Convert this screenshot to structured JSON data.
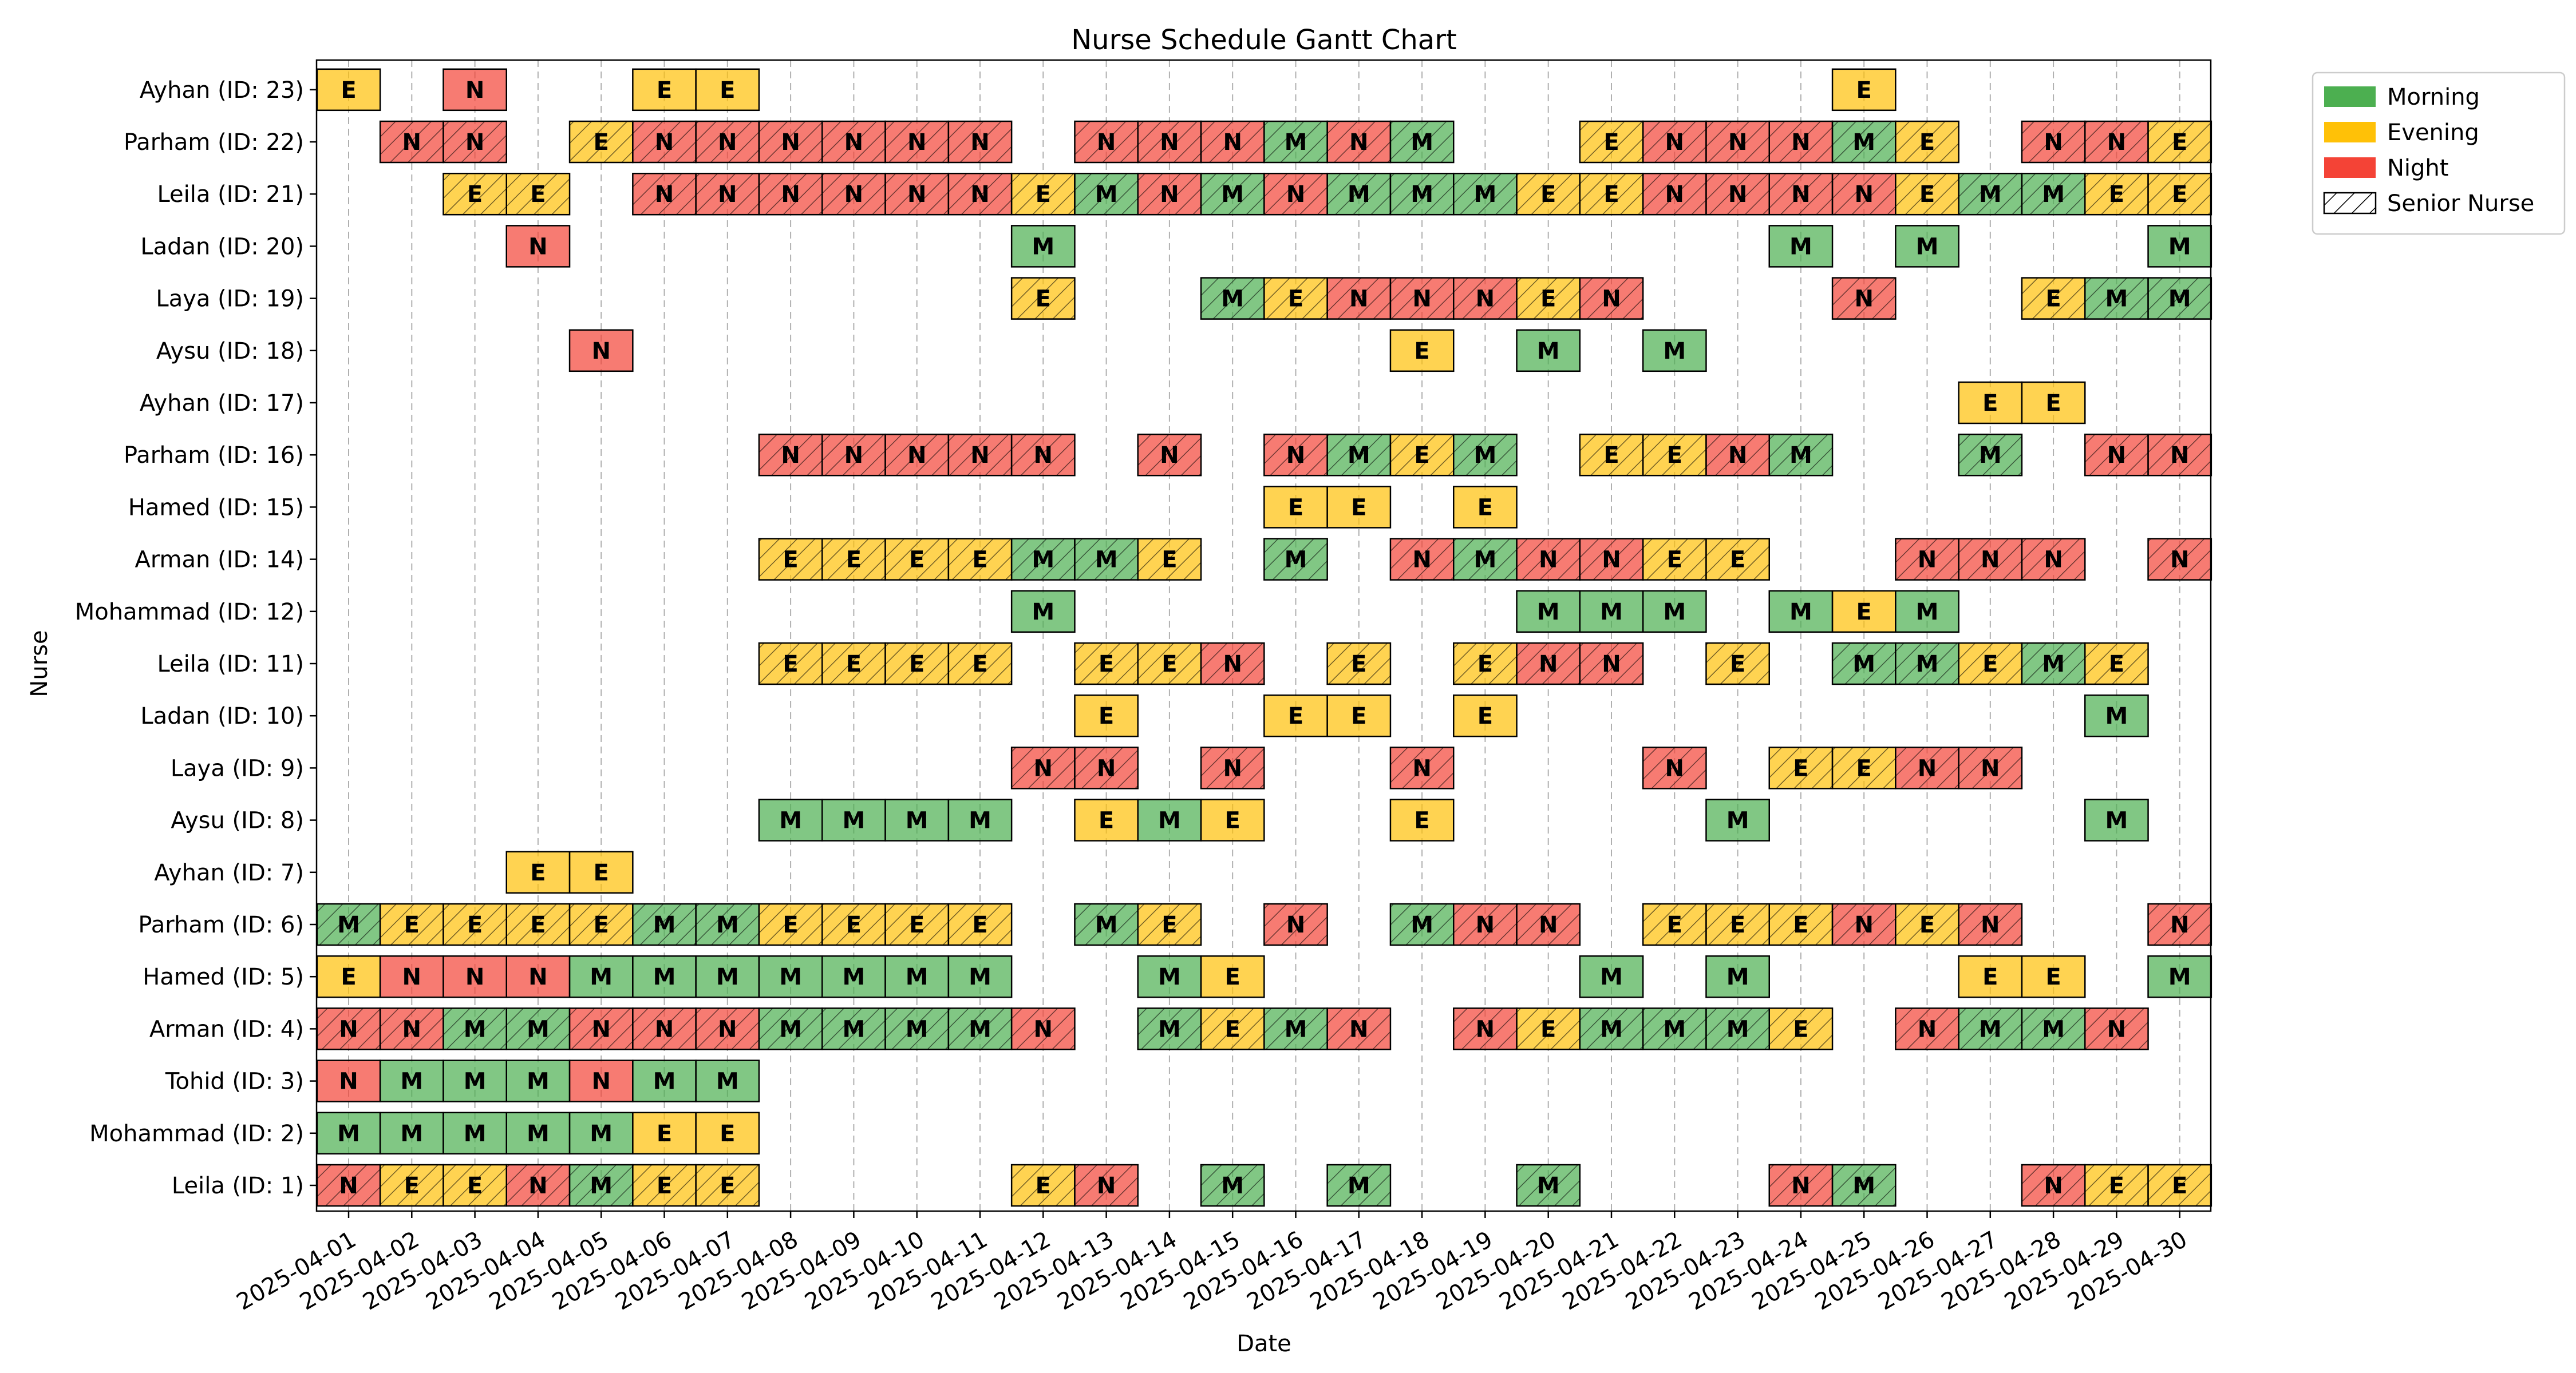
{
  "chart_data": {
    "type": "gantt",
    "title": "Nurse Schedule Gantt Chart",
    "xlabel": "Date",
    "ylabel": "Nurse",
    "grid": "vertical dashed",
    "legend_position": "outside right top",
    "dates": [
      "2025-04-01",
      "2025-04-02",
      "2025-04-03",
      "2025-04-04",
      "2025-04-05",
      "2025-04-06",
      "2025-04-07",
      "2025-04-08",
      "2025-04-09",
      "2025-04-10",
      "2025-04-11",
      "2025-04-12",
      "2025-04-13",
      "2025-04-14",
      "2025-04-15",
      "2025-04-16",
      "2025-04-17",
      "2025-04-18",
      "2025-04-19",
      "2025-04-20",
      "2025-04-21",
      "2025-04-22",
      "2025-04-23",
      "2025-04-24",
      "2025-04-25",
      "2025-04-26",
      "2025-04-27",
      "2025-04-28",
      "2025-04-29",
      "2025-04-30"
    ],
    "shift_types": {
      "M": {
        "name": "Morning",
        "color": "#4caf50"
      },
      "E": {
        "name": "Evening",
        "color": "#ffc107"
      },
      "N": {
        "name": "Night",
        "color": "#f44336"
      }
    },
    "legend": [
      {
        "label": "Morning",
        "color": "#4caf50",
        "hatch": false
      },
      {
        "label": "Evening",
        "color": "#ffc107",
        "hatch": false
      },
      {
        "label": "Night",
        "color": "#f44336",
        "hatch": false
      },
      {
        "label": "Senior Nurse",
        "color": "#ffffff",
        "hatch": true
      }
    ],
    "nurses": [
      {
        "label": "Leila (ID: 1)",
        "senior": true,
        "shifts": {
          "1": "N",
          "2": "E",
          "3": "E",
          "4": "N",
          "5": "M",
          "6": "E",
          "7": "E",
          "12": "E",
          "13": "N",
          "15": "M",
          "17": "M",
          "20": "M",
          "24": "N",
          "25": "M",
          "28": "N",
          "29": "E",
          "30": "E"
        }
      },
      {
        "label": "Mohammad (ID: 2)",
        "senior": false,
        "shifts": {
          "1": "M",
          "2": "M",
          "3": "M",
          "4": "M",
          "5": "M",
          "6": "E",
          "7": "E"
        }
      },
      {
        "label": "Tohid (ID: 3)",
        "senior": false,
        "shifts": {
          "1": "N",
          "2": "M",
          "3": "M",
          "4": "M",
          "5": "N",
          "6": "M",
          "7": "M"
        }
      },
      {
        "label": "Arman (ID: 4)",
        "senior": true,
        "shifts": {
          "1": "N",
          "2": "N",
          "3": "M",
          "4": "M",
          "5": "N",
          "6": "N",
          "7": "N",
          "8": "M",
          "9": "M",
          "10": "M",
          "11": "M",
          "12": "N",
          "14": "M",
          "15": "E",
          "16": "M",
          "17": "N",
          "19": "N",
          "20": "E",
          "21": "M",
          "22": "M",
          "23": "M",
          "24": "E",
          "26": "N",
          "27": "M",
          "28": "M",
          "29": "N"
        }
      },
      {
        "label": "Hamed (ID: 5)",
        "senior": false,
        "shifts": {
          "1": "E",
          "2": "N",
          "3": "N",
          "4": "N",
          "5": "M",
          "6": "M",
          "7": "M",
          "8": "M",
          "9": "M",
          "10": "M",
          "11": "M",
          "14": "M",
          "15": "E",
          "21": "M",
          "23": "M",
          "27": "E",
          "28": "E",
          "30": "M"
        }
      },
      {
        "label": "Parham (ID: 6)",
        "senior": true,
        "shifts": {
          "1": "M",
          "2": "E",
          "3": "E",
          "4": "E",
          "5": "E",
          "6": "M",
          "7": "M",
          "8": "E",
          "9": "E",
          "10": "E",
          "11": "E",
          "13": "M",
          "14": "E",
          "16": "N",
          "18": "M",
          "19": "N",
          "20": "N",
          "22": "E",
          "23": "E",
          "24": "E",
          "25": "N",
          "26": "E",
          "27": "N",
          "30": "N"
        }
      },
      {
        "label": "Ayhan (ID: 7)",
        "senior": false,
        "shifts": {
          "4": "E",
          "5": "E"
        }
      },
      {
        "label": "Aysu (ID: 8)",
        "senior": false,
        "shifts": {
          "8": "M",
          "9": "M",
          "10": "M",
          "11": "M",
          "13": "E",
          "14": "M",
          "15": "E",
          "18": "E",
          "23": "M",
          "29": "M"
        }
      },
      {
        "label": "Laya (ID: 9)",
        "senior": true,
        "shifts": {
          "12": "N",
          "13": "N",
          "15": "N",
          "18": "N",
          "22": "N",
          "24": "E",
          "25": "E",
          "26": "N",
          "27": "N"
        }
      },
      {
        "label": "Ladan (ID: 10)",
        "senior": false,
        "shifts": {
          "13": "E",
          "16": "E",
          "17": "E",
          "19": "E",
          "29": "M"
        }
      },
      {
        "label": "Leila (ID: 11)",
        "senior": true,
        "shifts": {
          "8": "E",
          "9": "E",
          "10": "E",
          "11": "E",
          "13": "E",
          "14": "E",
          "15": "N",
          "17": "E",
          "19": "E",
          "20": "N",
          "21": "N",
          "23": "E",
          "25": "M",
          "26": "M",
          "27": "E",
          "28": "M",
          "29": "E"
        }
      },
      {
        "label": "Mohammad (ID: 12)",
        "senior": false,
        "shifts": {
          "12": "M",
          "20": "M",
          "21": "M",
          "22": "M",
          "24": "M",
          "25": "E",
          "26": "M"
        }
      },
      {
        "label": "Arman (ID: 14)",
        "senior": true,
        "shifts": {
          "8": "E",
          "9": "E",
          "10": "E",
          "11": "E",
          "12": "M",
          "13": "M",
          "14": "E",
          "16": "M",
          "18": "N",
          "19": "M",
          "20": "N",
          "21": "N",
          "22": "E",
          "23": "E",
          "26": "N",
          "27": "N",
          "28": "N",
          "30": "N"
        }
      },
      {
        "label": "Hamed (ID: 15)",
        "senior": false,
        "shifts": {
          "16": "E",
          "17": "E",
          "19": "E"
        }
      },
      {
        "label": "Parham (ID: 16)",
        "senior": true,
        "shifts": {
          "8": "N",
          "9": "N",
          "10": "N",
          "11": "N",
          "12": "N",
          "14": "N",
          "16": "N",
          "17": "M",
          "18": "E",
          "19": "M",
          "21": "E",
          "22": "E",
          "23": "N",
          "24": "M",
          "27": "M",
          "29": "N",
          "30": "N"
        }
      },
      {
        "label": "Ayhan (ID: 17)",
        "senior": false,
        "shifts": {
          "27": "E",
          "28": "E"
        }
      },
      {
        "label": "Aysu (ID: 18)",
        "senior": false,
        "shifts": {
          "5": "N",
          "18": "E",
          "20": "M",
          "22": "M"
        }
      },
      {
        "label": "Laya (ID: 19)",
        "senior": true,
        "shifts": {
          "12": "E",
          "15": "M",
          "16": "E",
          "17": "N",
          "18": "N",
          "19": "N",
          "20": "E",
          "21": "N",
          "25": "N",
          "28": "E",
          "29": "M",
          "30": "M"
        }
      },
      {
        "label": "Ladan (ID: 20)",
        "senior": false,
        "shifts": {
          "4": "N",
          "12": "M",
          "24": "M",
          "26": "M",
          "30": "M"
        }
      },
      {
        "label": "Leila (ID: 21)",
        "senior": true,
        "shifts": {
          "3": "E",
          "4": "E",
          "6": "N",
          "7": "N",
          "8": "N",
          "9": "N",
          "10": "N",
          "11": "N",
          "12": "E",
          "13": "M",
          "14": "N",
          "15": "M",
          "16": "N",
          "17": "M",
          "18": "M",
          "19": "M",
          "20": "E",
          "21": "E",
          "22": "N",
          "23": "N",
          "24": "N",
          "25": "N",
          "26": "E",
          "27": "M",
          "28": "M",
          "29": "E",
          "30": "E"
        }
      },
      {
        "label": "Parham (ID: 22)",
        "senior": true,
        "shifts": {
          "2": "N",
          "3": "N",
          "5": "E",
          "6": "N",
          "7": "N",
          "8": "N",
          "9": "N",
          "10": "N",
          "11": "N",
          "13": "N",
          "14": "N",
          "15": "N",
          "16": "M",
          "17": "N",
          "18": "M",
          "21": "E",
          "22": "N",
          "23": "N",
          "24": "N",
          "25": "M",
          "26": "E",
          "28": "N",
          "29": "N",
          "30": "E"
        }
      },
      {
        "label": "Ayhan (ID: 23)",
        "senior": false,
        "shifts": {
          "1": "E",
          "3": "N",
          "6": "E",
          "7": "E",
          "25": "E"
        }
      }
    ]
  }
}
